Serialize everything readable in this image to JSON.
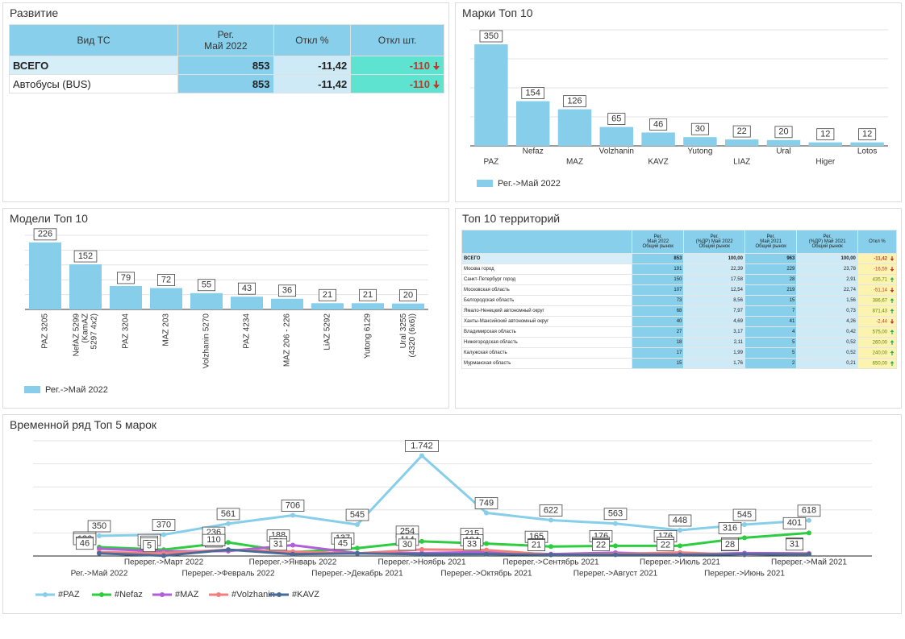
{
  "development": {
    "title": "Развитие",
    "header": [
      [
        "Вид ТС"
      ],
      [
        "Рег.",
        "Май 2022"
      ],
      [
        "Откл %"
      ],
      [
        "Откл шт."
      ]
    ],
    "rows": [
      [
        "ВСЕГО",
        "853",
        "-11,42",
        "-110"
      ],
      [
        "Автобусы (BUS)",
        "853",
        "-11,42",
        "-110"
      ]
    ]
  },
  "territories": {
    "title": "Топ 10 территорий",
    "header": [
      [
        "Рег.",
        "Май 2022",
        "Общий рынок"
      ],
      [
        "Рег.",
        "(%ДР) Май 2022",
        "Общий рынок"
      ],
      [
        "Рег.",
        "Май 2021",
        "Общий рынок"
      ],
      [
        "Рег.",
        "(%ДР) Май 2021",
        "Общий рынок"
      ],
      [
        "Откл %"
      ]
    ],
    "rows": [
      [
        "ВСЕГО",
        "853",
        "100,00",
        "963",
        "100,00",
        "-11,42"
      ],
      [
        "Москва город",
        "191",
        "22,39",
        "229",
        "23,78",
        "-16,59"
      ],
      [
        "Санкт-Петербург город",
        "150",
        "17,58",
        "28",
        "2,91",
        "435,71"
      ],
      [
        "Московская область",
        "107",
        "12,54",
        "219",
        "22,74",
        "-51,14"
      ],
      [
        "Белгородская область",
        "73",
        "8,56",
        "15",
        "1,56",
        "386,67"
      ],
      [
        "Ямало-Ненецкий автономный округ",
        "68",
        "7,97",
        "7",
        "0,73",
        "871,43"
      ],
      [
        "Ханты-Мансийский автономный округ",
        "40",
        "4,69",
        "41",
        "4,26",
        "-2,44"
      ],
      [
        "Владимирская область",
        "27",
        "3,17",
        "4",
        "0,42",
        "575,00"
      ],
      [
        "Нижегородская область",
        "18",
        "2,11",
        "5",
        "0,52",
        "260,00"
      ],
      [
        "Калужская область",
        "17",
        "1,99",
        "5",
        "0,52",
        "240,00"
      ],
      [
        "Мурманская область",
        "15",
        "1,76",
        "2",
        "0,21",
        "650,00"
      ]
    ]
  },
  "chart_data": [
    {
      "type": "bar",
      "title": "Марки Топ 10",
      "categories": [
        "PAZ",
        "Nefaz",
        "MAZ",
        "Volzhanin",
        "KAVZ",
        "Yutong",
        "LIAZ",
        "Ural",
        "Higer",
        "Lotos"
      ],
      "series": [
        {
          "name": "Рег.->Май 2022",
          "color": "#87ceeb",
          "values": [
            350,
            154,
            126,
            65,
            46,
            30,
            22,
            20,
            12,
            12
          ]
        }
      ],
      "ylim": [
        0,
        400
      ],
      "yticks": [
        0,
        100,
        200,
        300,
        400
      ],
      "grid": true
    },
    {
      "type": "bar",
      "title": "Модели Топ 10",
      "categories": [
        [
          "PAZ 3205"
        ],
        [
          "NefAZ 5299",
          "(KamAZ",
          "5297 4x2)"
        ],
        [
          "PAZ 3204"
        ],
        [
          "MAZ 203"
        ],
        [
          "Volzhanin 5270"
        ],
        [
          "PAZ 4234"
        ],
        [
          "MAZ 206 - 226"
        ],
        [
          "LiAZ 5292"
        ],
        [
          "Yutong 6129"
        ],
        [
          "Ural 3255",
          "(4320 (6x6))"
        ]
      ],
      "series": [
        {
          "name": "Рег.->Май 2022",
          "color": "#87ceeb",
          "values": [
            226,
            152,
            79,
            72,
            55,
            43,
            36,
            21,
            21,
            20
          ]
        }
      ],
      "ylim": [
        0,
        250
      ],
      "yticks": [
        0,
        50,
        100,
        150,
        200,
        250
      ],
      "grid": true
    },
    {
      "type": "line",
      "title": "Временной ряд Топ 5 марок",
      "categories": [
        "Рег.->Май 2022",
        "Перерег.->Март 2022",
        "Перерег.->Февраль 2022",
        "Перерег.->Январь 2022",
        "Перерег.->Декабрь 2021",
        "Перерег.->Ноябрь 2021",
        "Перерег.->Октябрь 2021",
        "Перерег.->Сентябрь 2021",
        "Перерег.->Август 2021",
        "Перерег.->Июль 2021",
        "Перерег.->Июнь 2021",
        "Перерег.->Май 2021"
      ],
      "series": [
        {
          "name": "#PAZ",
          "color": "#87ceeb",
          "values": [
            350,
            370,
            561,
            706,
            545,
            1742,
            749,
            622,
            563,
            448,
            545,
            618
          ],
          "value_labels": [
            "350",
            "370",
            "561",
            "706",
            "545",
            "1.742",
            "749",
            "622",
            "563",
            "448",
            "545",
            "618"
          ]
        },
        {
          "name": "#Nefaz",
          "color": "#2ecc40",
          "values": [
            154,
            110,
            236,
            65,
            137,
            254,
            215,
            165,
            176,
            176,
            316,
            401
          ]
        },
        {
          "name": "#MAZ",
          "color": "#b05fd6",
          "values": [
            126,
            81,
            85,
            188,
            49,
            51,
            70,
            33,
            58,
            26,
            50,
            46
          ]
        },
        {
          "name": "#Volzhanin",
          "color": "#f08080",
          "values": [
            65,
            51,
            107,
            76,
            45,
            114,
            104,
            21,
            35,
            61,
            19,
            42
          ]
        },
        {
          "name": "#KAVZ",
          "color": "#4a6a9a",
          "values": [
            46,
            5,
            110,
            31,
            45,
            30,
            33,
            21,
            22,
            22,
            28,
            31
          ]
        }
      ],
      "ylim": [
        0,
        2000
      ],
      "yticks": [
        0,
        400,
        800,
        1200,
        1600,
        2000
      ],
      "grid": true
    }
  ]
}
